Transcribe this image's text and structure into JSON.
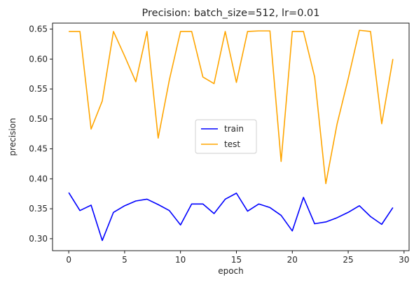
{
  "chart_data": {
    "type": "line",
    "title": "Precision: batch_size=512, lr=0.01",
    "xlabel": "epoch",
    "ylabel": "precision",
    "xlim": [
      -1.45,
      30.45
    ],
    "ylim": [
      0.28,
      0.66
    ],
    "xticks": [
      0,
      5,
      10,
      15,
      20,
      25,
      30
    ],
    "yticks": [
      0.3,
      0.35,
      0.4,
      0.45,
      0.5,
      0.55,
      0.6,
      0.65
    ],
    "grid": false,
    "legend_position": "center",
    "x": [
      0,
      1,
      2,
      3,
      4,
      5,
      6,
      7,
      8,
      9,
      10,
      11,
      12,
      13,
      14,
      15,
      16,
      17,
      18,
      19,
      20,
      21,
      22,
      23,
      24,
      25,
      26,
      27,
      28,
      29
    ],
    "series": [
      {
        "name": "train",
        "color": "#0000ff",
        "values": [
          0.377,
          0.347,
          0.356,
          0.297,
          0.344,
          0.355,
          0.363,
          0.366,
          0.357,
          0.347,
          0.323,
          0.358,
          0.358,
          0.342,
          0.366,
          0.376,
          0.346,
          0.358,
          0.352,
          0.339,
          0.313,
          0.369,
          0.325,
          0.328,
          0.335,
          0.344,
          0.355,
          0.337,
          0.324,
          0.352
        ]
      },
      {
        "name": "test",
        "color": "#ffa500",
        "values": [
          0.646,
          0.646,
          0.483,
          0.53,
          0.646,
          0.605,
          0.562,
          0.646,
          0.468,
          0.565,
          0.646,
          0.646,
          0.57,
          0.559,
          0.646,
          0.561,
          0.646,
          0.647,
          0.647,
          0.429,
          0.646,
          0.646,
          0.57,
          0.392,
          0.491,
          0.567,
          0.648,
          0.646,
          0.492,
          0.6
        ]
      }
    ]
  }
}
